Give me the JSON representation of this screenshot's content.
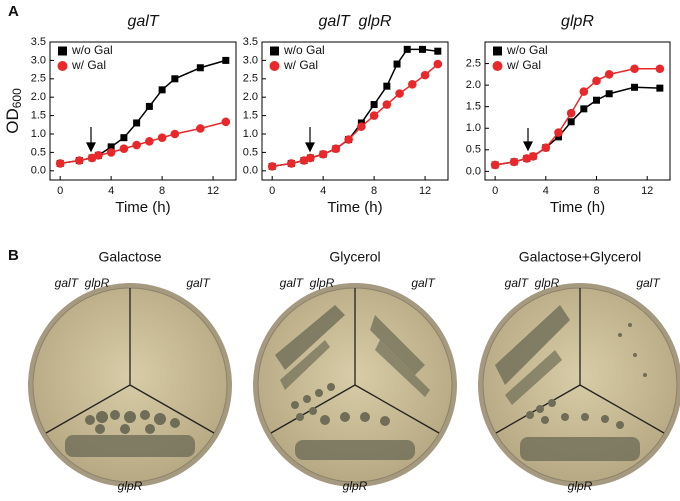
{
  "figure": {
    "panel_a": "A",
    "panel_b": "B",
    "plates": [
      {
        "title": "Galactose",
        "left": "galT  glpR",
        "right": "galT",
        "bottom": "glpR"
      },
      {
        "title": "Glycerol",
        "left": "galT  glpR",
        "right": "galT",
        "bottom": "glpR"
      },
      {
        "title": "Galactose+Glycerol",
        "left": "galT  glpR",
        "right": "galT",
        "bottom": "glpR"
      }
    ]
  },
  "chart_data": [
    {
      "type": "line",
      "title": "galT",
      "ylabel": "OD",
      "ylabel_sub": "600",
      "xlabel": "Time (h)",
      "xlim": [
        -0.8,
        13.8
      ],
      "xticks": [
        0,
        4,
        8,
        12
      ],
      "ylim": [
        -0.25,
        3.5
      ],
      "yticks": [
        0.0,
        0.5,
        1.0,
        1.5,
        2.0,
        2.5,
        3.0,
        3.5
      ],
      "ytick_labels": [
        "0.0",
        "0.5",
        "1.0",
        "1.5",
        "2.0",
        "2.5",
        "3.0",
        "3.5"
      ],
      "series": [
        {
          "name": "w/o Gal",
          "color": "#000000",
          "marker": "square",
          "x": [
            0,
            1.5,
            2.5,
            3,
            4,
            5,
            6,
            7,
            8,
            9,
            11,
            13
          ],
          "values": [
            0.2,
            0.28,
            0.35,
            0.42,
            0.65,
            0.9,
            1.3,
            1.75,
            2.2,
            2.5,
            2.8,
            3.0
          ]
        },
        {
          "name": "w/ Gal",
          "color": "#e8282b",
          "marker": "circle",
          "x": [
            0,
            1.5,
            2.5,
            3,
            4,
            5,
            6,
            7,
            8,
            9,
            11,
            13
          ],
          "values": [
            0.2,
            0.28,
            0.35,
            0.42,
            0.5,
            0.6,
            0.7,
            0.8,
            0.9,
            1.0,
            1.15,
            1.33
          ]
        }
      ]
    },
    {
      "type": "line",
      "title": "galT  glpR",
      "xlabel": "Time (h)",
      "xlim": [
        -0.8,
        13.8
      ],
      "xticks": [
        0,
        4,
        8,
        12
      ],
      "ylim": [
        -0.25,
        3.5
      ],
      "yticks": [
        0.0,
        0.5,
        1.0,
        1.5,
        2.0,
        2.5,
        3.0,
        3.5
      ],
      "ytick_labels": [
        "0.0",
        "0.5",
        "1.0",
        "1.5",
        "2.0",
        "2.5",
        "3.0",
        "3.5"
      ],
      "series": [
        {
          "name": "w/o Gal",
          "color": "#000000",
          "marker": "square",
          "x": [
            0,
            1.5,
            2.5,
            3,
            4,
            5,
            6,
            7,
            8,
            9,
            9.8,
            10.6,
            11.8,
            13
          ],
          "values": [
            0.12,
            0.2,
            0.28,
            0.35,
            0.45,
            0.6,
            0.85,
            1.3,
            1.8,
            2.3,
            2.9,
            3.3,
            3.3,
            3.25
          ]
        },
        {
          "name": "w/ Gal",
          "color": "#e8282b",
          "marker": "circle",
          "x": [
            0,
            1.5,
            2.5,
            3,
            4,
            5,
            6,
            7,
            8,
            9,
            10,
            11,
            12,
            13
          ],
          "values": [
            0.12,
            0.2,
            0.28,
            0.35,
            0.45,
            0.6,
            0.85,
            1.2,
            1.5,
            1.8,
            2.1,
            2.35,
            2.6,
            2.9
          ]
        }
      ]
    },
    {
      "type": "line",
      "title": "glpR",
      "xlabel": "Time (h)",
      "xlim": [
        -0.8,
        13.8
      ],
      "xticks": [
        0,
        4,
        8,
        12
      ],
      "ylim": [
        -0.2,
        3.0
      ],
      "yticks": [
        0.0,
        0.5,
        1.0,
        1.5,
        2.0,
        2.5
      ],
      "ytick_labels": [
        "0.0",
        "0.5",
        "1.0",
        "1.5",
        "2.0",
        "2.5"
      ],
      "series": [
        {
          "name": "w/o Gal",
          "color": "#000000",
          "marker": "square",
          "x": [
            0,
            1.5,
            2.5,
            3,
            4,
            5,
            6,
            7,
            8,
            9,
            11,
            13
          ],
          "values": [
            0.15,
            0.22,
            0.3,
            0.35,
            0.55,
            0.8,
            1.15,
            1.45,
            1.65,
            1.8,
            1.95,
            1.93
          ]
        },
        {
          "name": "w/ Gal",
          "color": "#e8282b",
          "marker": "circle",
          "x": [
            0,
            1.5,
            2.5,
            3,
            4,
            5,
            6,
            7,
            8,
            9,
            11,
            13
          ],
          "values": [
            0.15,
            0.22,
            0.3,
            0.35,
            0.55,
            0.9,
            1.35,
            1.85,
            2.1,
            2.25,
            2.38,
            2.38
          ]
        }
      ]
    }
  ]
}
